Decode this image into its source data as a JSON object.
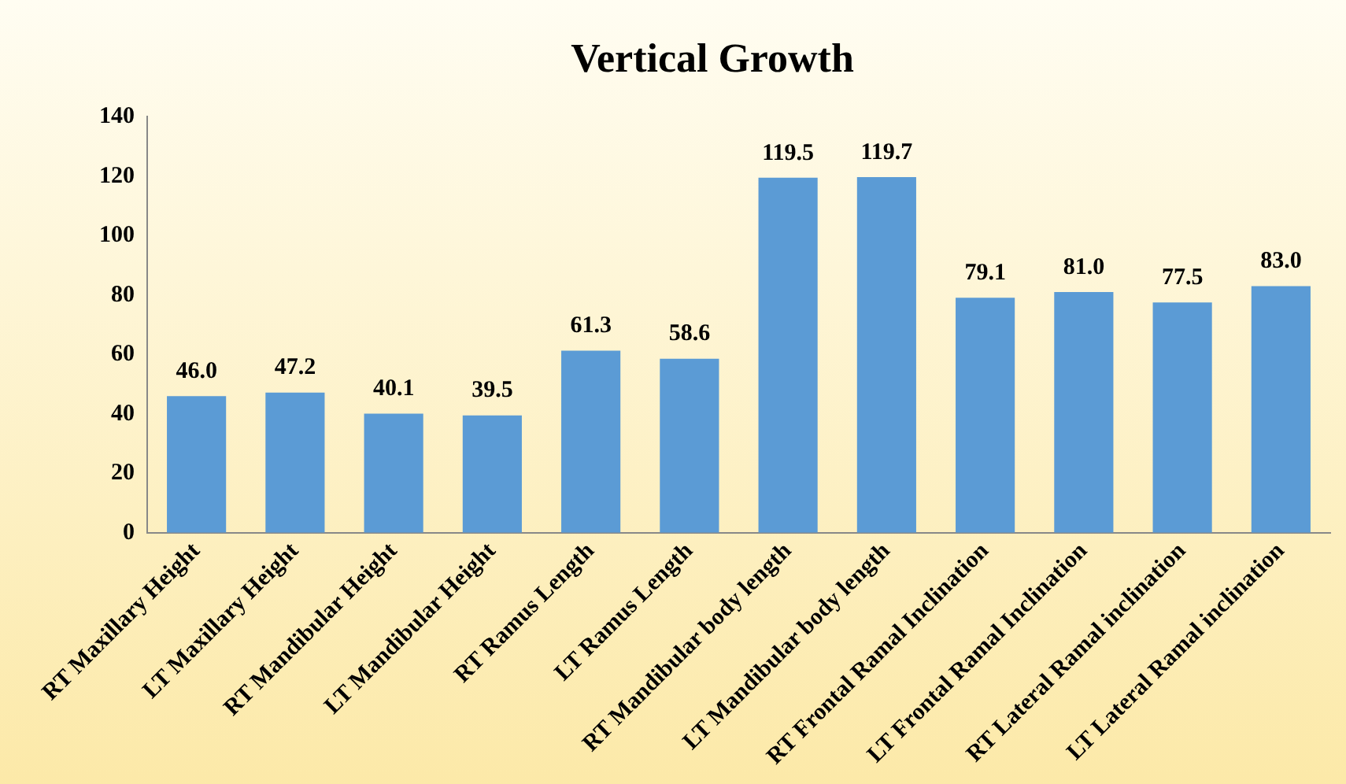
{
  "chart_data": {
    "type": "bar",
    "title": "Vertical Growth",
    "categories": [
      "RT Maxillary Height",
      "LT Maxillary Height",
      "RT Mandibular Height",
      "LT Mandibular Height",
      "RT Ramus Length",
      "LT Ramus Length",
      "RT Mandibular body length",
      "LT Mandibular body length",
      "RT Frontal Ramal Inclination",
      "LT Frontal Ramal Inclination",
      "RT Lateral Ramal inclination",
      "LT Lateral Ramal inclination"
    ],
    "values": [
      46.0,
      47.2,
      40.1,
      39.5,
      61.3,
      58.6,
      119.5,
      119.7,
      79.1,
      81.0,
      77.5,
      83.0
    ],
    "value_labels": [
      "46.0",
      "47.2",
      "40.1",
      "39.5",
      "61.3",
      "58.6",
      "119.5",
      "119.7",
      "79.1",
      "81.0",
      "77.5",
      "83.0"
    ],
    "color": "#5b9bd5",
    "ylim": [
      0,
      140
    ],
    "yticks": [
      0,
      20,
      40,
      60,
      80,
      100,
      120,
      140
    ],
    "grid": false,
    "legend": false
  }
}
